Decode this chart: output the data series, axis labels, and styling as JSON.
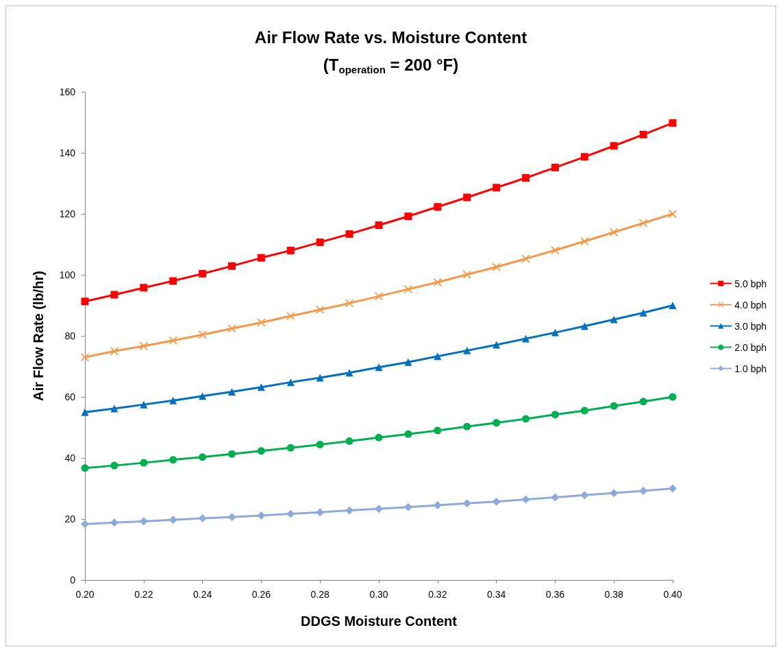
{
  "chart_data": {
    "type": "line",
    "title": "Air Flow Rate vs. Moisture Content",
    "subtitle": "(T$_{operation}$ = 200 °F)",
    "xlabel": "DDGS Moisture Content",
    "ylabel": "Air Flow Rate (lb/hr)",
    "x": [
      0.2,
      0.21,
      0.22,
      0.23,
      0.24,
      0.25,
      0.26,
      0.27,
      0.28,
      0.29,
      0.3,
      0.31,
      0.32,
      0.33,
      0.34,
      0.35,
      0.36,
      0.37,
      0.38,
      0.39,
      0.4
    ],
    "series": [
      {
        "name": "5.0 bph",
        "color": "#ff0000",
        "marker": "square",
        "values": [
          91.3,
          93.5,
          95.8,
          98,
          100.4,
          102.9,
          105.6,
          108,
          110.7,
          113.4,
          116.3,
          119.2,
          122.3,
          125.4,
          128.6,
          131.8,
          135.2,
          138.7,
          142.3,
          146,
          149.8
        ]
      },
      {
        "name": "4.0 bph",
        "color": "#f79646",
        "marker": "cross",
        "values": [
          73,
          75,
          76.7,
          78.5,
          80.4,
          82.4,
          84.4,
          86.5,
          88.6,
          90.7,
          93,
          95.3,
          97.6,
          100.1,
          102.6,
          105.3,
          108.1,
          111,
          114,
          117,
          120
        ]
      },
      {
        "name": "3.0 bph",
        "color": "#0070c0",
        "marker": "triangle",
        "values": [
          55,
          56.2,
          57.5,
          58.8,
          60.3,
          61.7,
          63.2,
          64.8,
          66.3,
          67.9,
          69.7,
          71.4,
          73.3,
          75.2,
          77.1,
          79.1,
          81.1,
          83.2,
          85.4,
          87.6,
          90
        ]
      },
      {
        "name": "2.0 bph",
        "color": "#00b050",
        "marker": "circle",
        "values": [
          36.7,
          37.5,
          38.4,
          39.4,
          40.3,
          41.3,
          42.3,
          43.3,
          44.4,
          45.5,
          46.7,
          47.8,
          49,
          50.3,
          51.5,
          52.8,
          54.2,
          55.5,
          57,
          58.5,
          60
        ]
      },
      {
        "name": "1.0 bph",
        "color": "#8eaadb",
        "marker": "diamond",
        "values": [
          18.3,
          18.8,
          19.2,
          19.7,
          20.2,
          20.6,
          21.1,
          21.7,
          22.2,
          22.8,
          23.3,
          23.9,
          24.5,
          25.1,
          25.7,
          26.4,
          27.1,
          27.8,
          28.5,
          29.2,
          30
        ]
      }
    ],
    "xlim": [
      0.2,
      0.4
    ],
    "xticks": [
      {
        "value": 0.2,
        "label": "0.20"
      },
      {
        "value": 0.22,
        "label": "0.22"
      },
      {
        "value": 0.24,
        "label": "0.24"
      },
      {
        "value": 0.26,
        "label": "0.26"
      },
      {
        "value": 0.28,
        "label": "0.28"
      },
      {
        "value": 0.3,
        "label": "0.30"
      },
      {
        "value": 0.32,
        "label": "0.32"
      },
      {
        "value": 0.34,
        "label": "0.34"
      },
      {
        "value": 0.36,
        "label": "0.36"
      },
      {
        "value": 0.38,
        "label": "0.38"
      },
      {
        "value": 0.4,
        "label": "0.40"
      }
    ],
    "ylim": [
      0,
      160
    ],
    "yticks": [
      0,
      20,
      40,
      60,
      80,
      100,
      120,
      140,
      160
    ],
    "grid": false,
    "legend": "right",
    "line_style": "solid"
  }
}
